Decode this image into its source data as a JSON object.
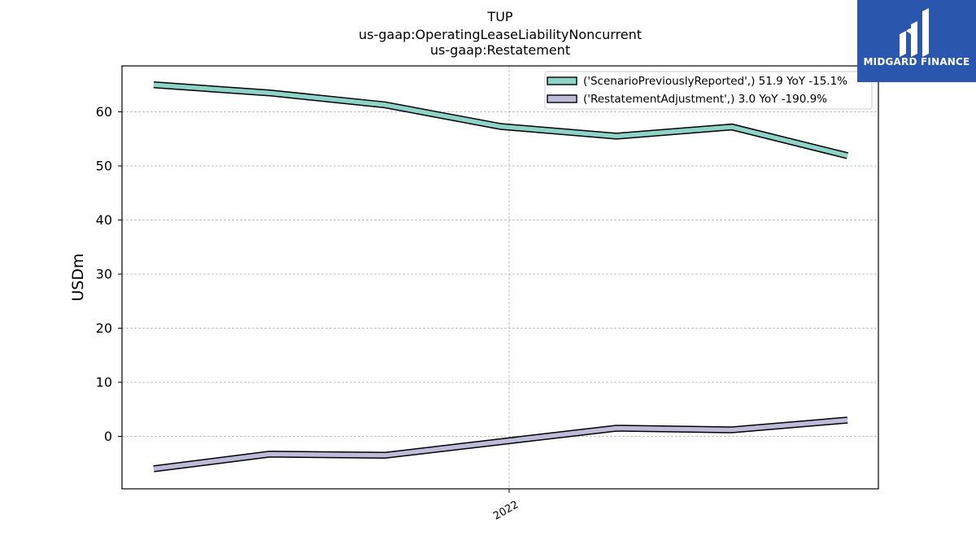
{
  "header": {
    "title": "TUP",
    "subtitle1": "us-gaap:OperatingLeaseLiabilityNoncurrent",
    "subtitle2": "us-gaap:Restatement"
  },
  "logo": {
    "text": "MIDGARD FINANCE",
    "bg_color": "#2b56ad"
  },
  "chart_data": {
    "type": "line",
    "title": "TUP",
    "ylabel": "USDm",
    "xlabel": "",
    "ylim": [
      -9.7,
      68.5
    ],
    "yticks": [
      0,
      10,
      20,
      30,
      40,
      50,
      60
    ],
    "x_tick_labels": [
      "2022"
    ],
    "grid": true,
    "legend_position": "top-right",
    "series": [
      {
        "name": "('ScenarioPreviouslyReported',) 51.9 YoY -15.1%",
        "color": "#8dd3c7",
        "values": [
          65.0,
          63.5,
          61.3,
          57.3,
          55.5,
          57.2,
          51.9
        ]
      },
      {
        "name": "('RestatementAdjustment',) 3.0 YoY -190.9%",
        "color": "#bebada",
        "values": [
          -6.0,
          -3.3,
          -3.5,
          -1.0,
          1.5,
          1.2,
          3.0
        ]
      }
    ]
  }
}
